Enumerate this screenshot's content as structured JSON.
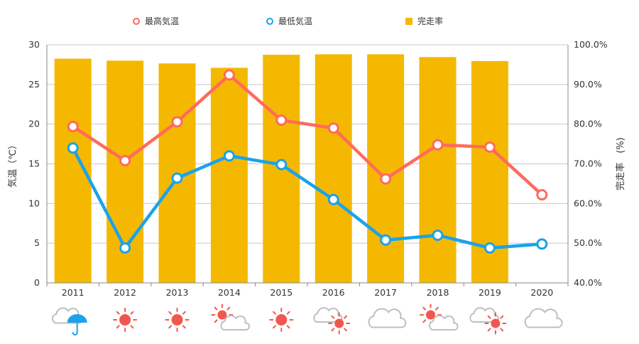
{
  "chart_data": {
    "type": "bar",
    "categories": [
      "2011",
      "2012",
      "2013",
      "2014",
      "2015",
      "2016",
      "2017",
      "2018",
      "2019",
      "2020"
    ],
    "series": [
      {
        "name": "最高気温",
        "kind": "line",
        "axis": "left",
        "color": "#ff6b5b",
        "values": [
          19.7,
          15.4,
          20.3,
          26.2,
          20.5,
          19.5,
          13.1,
          17.4,
          17.1,
          11.1
        ]
      },
      {
        "name": "最低気温",
        "kind": "line",
        "axis": "left",
        "color": "#1aa3ea",
        "values": [
          17.0,
          4.4,
          13.2,
          16.0,
          14.9,
          10.5,
          5.4,
          6.0,
          4.4,
          4.9
        ]
      },
      {
        "name": "完走率",
        "kind": "bar",
        "axis": "right",
        "color": "#f5b800",
        "values": [
          96.5,
          96.0,
          95.3,
          94.2,
          97.5,
          97.6,
          97.6,
          96.9,
          95.9,
          null
        ]
      }
    ],
    "yleft": {
      "label": "気温（℃）",
      "lim": [
        0,
        30
      ],
      "ticks": [
        "0",
        "5",
        "10",
        "15",
        "20",
        "25",
        "30"
      ]
    },
    "yright": {
      "label": "完走率　(%)",
      "lim": [
        40,
        100
      ],
      "ticks": [
        "40.0%",
        "50.0%",
        "60.0%",
        "70.0%",
        "80.0%",
        "90.0%",
        "100.0%"
      ]
    },
    "grid": true,
    "legend_position": "top",
    "weather_icons": [
      "cloud-rain-icon",
      "sun-icon",
      "sun-icon",
      "sun-cloud-icon",
      "sun-icon",
      "cloud-sun-icon",
      "cloud-icon",
      "sun-cloud-icon",
      "cloud-sun-icon",
      "cloud-icon"
    ]
  }
}
